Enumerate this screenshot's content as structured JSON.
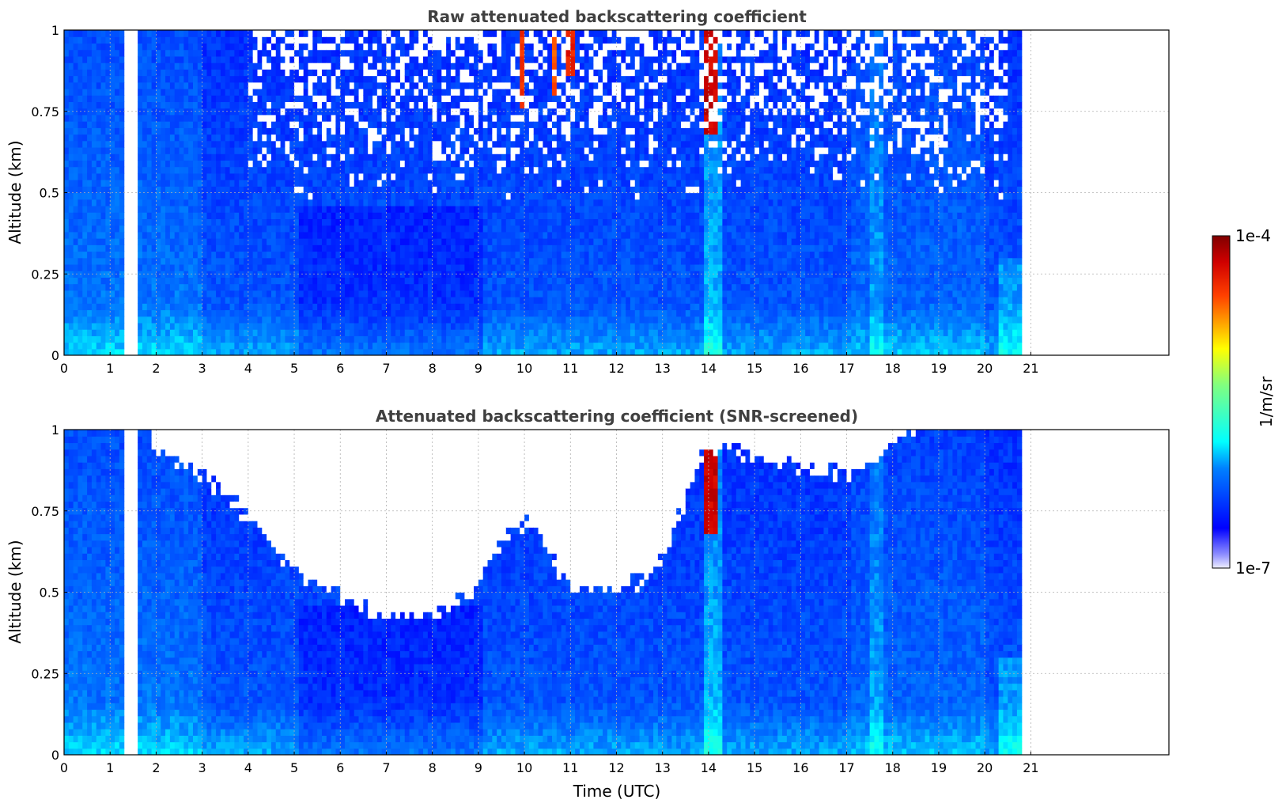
{
  "chart_data": [
    {
      "type": "heatmap",
      "title": "Raw attenuated backscattering coefficient",
      "xlabel": "",
      "ylabel": "Altitude (km)",
      "xlim": [
        0,
        24
      ],
      "ylim": [
        0,
        1
      ],
      "x_ticks": [
        "0",
        "1",
        "2",
        "3",
        "4",
        "5",
        "6",
        "7",
        "8",
        "9",
        "10",
        "11",
        "12",
        "13",
        "14",
        "15",
        "16",
        "17",
        "18",
        "19",
        "20",
        "21"
      ],
      "y_ticks": [
        "0",
        "0.25",
        "0.5",
        "0.75",
        "1"
      ],
      "grid": true,
      "data_coverage_utc": [
        0,
        20.8
      ],
      "data_gap_utc": [
        1.4,
        1.55
      ],
      "screened": false
    },
    {
      "type": "heatmap",
      "title": "Attenuated backscattering coefficient (SNR-screened)",
      "xlabel": "Time (UTC)",
      "ylabel": "Altitude (km)",
      "xlim": [
        0,
        24
      ],
      "ylim": [
        0,
        1
      ],
      "x_ticks": [
        "0",
        "1",
        "2",
        "3",
        "4",
        "5",
        "6",
        "7",
        "8",
        "9",
        "10",
        "11",
        "12",
        "13",
        "14",
        "15",
        "16",
        "17",
        "18",
        "19",
        "20",
        "21"
      ],
      "y_ticks": [
        "0",
        "0.25",
        "0.5",
        "0.75",
        "1"
      ],
      "grid": true,
      "data_coverage_utc": [
        0,
        20.8
      ],
      "data_gap_utc": [
        1.4,
        1.55
      ],
      "screened": true
    }
  ],
  "colorbar": {
    "label": "1/m/sr",
    "max_label": "1e-4",
    "min_label": "1e-7",
    "scale": "log",
    "colormap": "jet"
  }
}
